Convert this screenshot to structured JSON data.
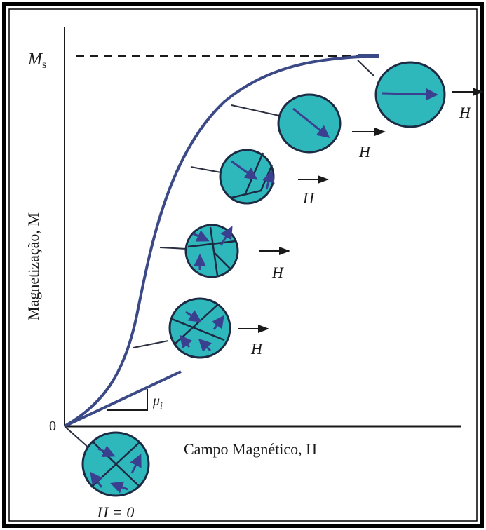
{
  "saturation_label": {
    "symbol": "M",
    "subscript": "s"
  },
  "y_axis_label": "Magnetização, M",
  "x_axis_label": "Campo Magnético, H",
  "origin_label": "0",
  "slope_label": {
    "symbol": "μ",
    "subscript": "i"
  },
  "field_labels": [
    "H",
    "H",
    "H",
    "H",
    "H"
  ],
  "zero_field_label": "H = 0"
}
